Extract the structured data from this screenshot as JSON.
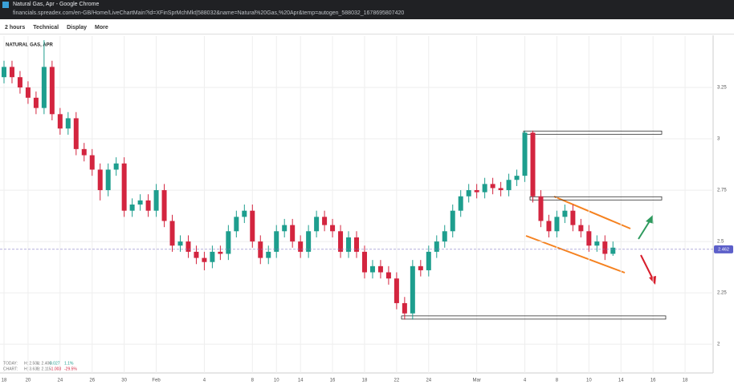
{
  "window": {
    "title": "Natural Gas, Apr - Google Chrome",
    "url": "financials.spreadex.com/en-GB/Home/LiveChartMain?id=XFinSprMchMkt|588032&name=Natural%20Gas,%20Apr&temp=autogen_588032_1678695807420"
  },
  "toolbar": {
    "items": [
      "2 hours",
      "Technical",
      "Display",
      "More"
    ]
  },
  "chart_data": {
    "type": "candlestick",
    "title": "NATURAL GAS, APR",
    "categories": [
      "18",
      null,
      null,
      "20",
      null,
      null,
      null,
      "24",
      null,
      null,
      null,
      "26",
      null,
      null,
      null,
      "30",
      null,
      null,
      null,
      "Feb",
      null,
      null,
      null,
      null,
      null,
      "4",
      null,
      null,
      null,
      null,
      null,
      "8",
      null,
      null,
      "10",
      null,
      null,
      "14",
      null,
      null,
      null,
      "16",
      null,
      null,
      null,
      "18",
      null,
      null,
      null,
      "22",
      null,
      null,
      null,
      "24",
      null,
      null,
      null,
      null,
      null,
      "Mar",
      null,
      null,
      null,
      null,
      null,
      "4",
      null,
      null,
      null,
      "8",
      null,
      null,
      null,
      "10",
      null,
      null,
      null,
      "14",
      null,
      null,
      null,
      "16",
      null,
      null,
      null,
      "18",
      null,
      null,
      null
    ],
    "open": [
      3.3,
      3.35,
      3.3,
      3.25,
      3.2,
      3.15,
      3.35,
      3.12,
      3.05,
      3.1,
      2.95,
      2.92,
      2.85,
      2.75,
      2.85,
      2.88,
      2.65,
      2.68,
      2.7,
      2.65,
      2.75,
      2.6,
      2.48,
      2.5,
      2.45,
      2.42,
      2.4,
      2.45,
      2.44,
      2.55,
      2.62,
      2.65,
      2.5,
      2.42,
      2.45,
      2.55,
      2.58,
      2.5,
      2.45,
      2.55,
      2.62,
      2.58,
      2.55,
      2.45,
      2.52,
      2.45,
      2.35,
      2.38,
      2.35,
      2.32,
      2.2,
      2.15,
      2.38,
      2.36,
      2.45,
      2.5,
      2.55,
      2.65,
      2.72,
      2.75,
      2.74,
      2.78,
      2.76,
      2.75,
      2.8,
      2.82,
      3.03,
      2.72,
      2.6,
      2.55,
      2.62,
      2.65,
      2.58,
      2.55,
      2.48,
      2.5,
      2.44,
      null,
      null,
      null,
      null,
      null,
      null,
      null,
      null,
      null,
      null,
      null,
      null
    ],
    "high": [
      3.38,
      3.38,
      3.33,
      3.28,
      3.23,
      3.48,
      3.38,
      3.15,
      3.13,
      3.13,
      2.98,
      2.95,
      2.88,
      2.88,
      2.91,
      2.91,
      2.71,
      2.73,
      2.73,
      2.78,
      2.78,
      2.63,
      2.53,
      2.53,
      2.48,
      2.45,
      2.48,
      2.48,
      2.58,
      2.65,
      2.68,
      2.68,
      2.53,
      2.48,
      2.58,
      2.61,
      2.61,
      2.53,
      2.58,
      2.65,
      2.65,
      2.61,
      2.58,
      2.55,
      2.55,
      2.48,
      2.41,
      2.41,
      2.38,
      2.35,
      2.23,
      2.41,
      2.41,
      2.48,
      2.53,
      2.58,
      2.68,
      2.75,
      2.78,
      2.78,
      2.81,
      2.81,
      2.79,
      2.83,
      2.85,
      3.04,
      3.04,
      2.75,
      2.63,
      2.65,
      2.68,
      2.68,
      2.61,
      2.58,
      2.53,
      2.53,
      2.5,
      null,
      null,
      null,
      null,
      null,
      null,
      null,
      null,
      null,
      null,
      null,
      null
    ],
    "low": [
      3.27,
      3.27,
      3.22,
      3.17,
      3.12,
      3.12,
      3.09,
      3.02,
      3.02,
      2.92,
      2.89,
      2.82,
      2.7,
      2.72,
      2.82,
      2.62,
      2.62,
      2.65,
      2.62,
      2.62,
      2.57,
      2.45,
      2.45,
      2.42,
      2.39,
      2.36,
      2.37,
      2.41,
      2.41,
      2.52,
      2.59,
      2.47,
      2.39,
      2.39,
      2.42,
      2.52,
      2.47,
      2.42,
      2.42,
      2.52,
      2.55,
      2.52,
      2.42,
      2.42,
      2.42,
      2.32,
      2.32,
      2.32,
      2.29,
      2.17,
      2.12,
      2.12,
      2.33,
      2.33,
      2.42,
      2.47,
      2.52,
      2.62,
      2.69,
      2.71,
      2.71,
      2.73,
      2.72,
      2.72,
      2.77,
      2.79,
      2.69,
      2.57,
      2.52,
      2.52,
      2.59,
      2.55,
      2.52,
      2.45,
      2.45,
      2.41,
      2.43,
      null,
      null,
      null,
      null,
      null,
      null,
      null,
      null,
      null,
      null,
      null,
      null
    ],
    "close": [
      3.35,
      3.3,
      3.25,
      3.2,
      3.15,
      3.35,
      3.12,
      3.05,
      3.1,
      2.95,
      2.92,
      2.85,
      2.75,
      2.85,
      2.88,
      2.65,
      2.68,
      2.7,
      2.65,
      2.75,
      2.6,
      2.48,
      2.5,
      2.45,
      2.42,
      2.4,
      2.45,
      2.44,
      2.55,
      2.62,
      2.65,
      2.5,
      2.42,
      2.45,
      2.55,
      2.58,
      2.5,
      2.45,
      2.55,
      2.62,
      2.58,
      2.55,
      2.45,
      2.52,
      2.45,
      2.35,
      2.38,
      2.35,
      2.32,
      2.2,
      2.15,
      2.38,
      2.36,
      2.45,
      2.5,
      2.55,
      2.65,
      2.72,
      2.75,
      2.74,
      2.78,
      2.76,
      2.75,
      2.8,
      2.82,
      3.03,
      2.72,
      2.6,
      2.55,
      2.62,
      2.65,
      2.58,
      2.55,
      2.48,
      2.5,
      2.44,
      2.47,
      null,
      null,
      null,
      null,
      null,
      null,
      null,
      null,
      null,
      null,
      null,
      null
    ],
    "up_color": "#1e9e8e",
    "down_color": "#d3253f",
    "ylim": [
      1.86,
      3.5
    ],
    "yticks": [
      3.25,
      3,
      2.75,
      2.5,
      2.25,
      2
    ],
    "grid": true,
    "last_price": 2.462,
    "zones": [
      3.03,
      2.71,
      2.13
    ],
    "info": {
      "today": [
        "TODAY:",
        "H: 2.504",
        "L: 2.406",
        "0.027",
        "1.1%"
      ],
      "chart": [
        "CHART:",
        "H: 3.639",
        "L: 2.115",
        "-1.003",
        "-29.5%"
      ]
    }
  }
}
